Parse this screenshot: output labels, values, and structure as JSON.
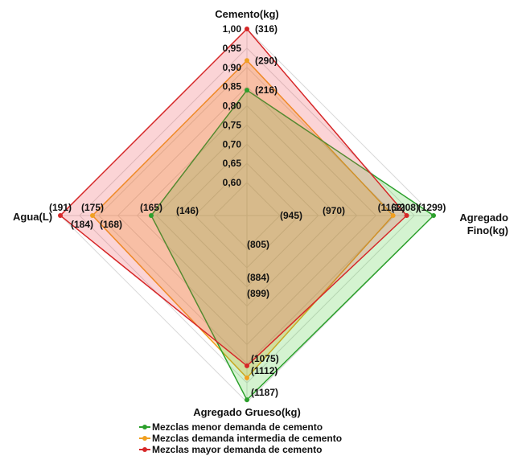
{
  "chart_data": {
    "type": "radar",
    "axes": [
      {
        "name": "Cemento(kg)",
        "lines": [
          "Cemento(kg)"
        ]
      },
      {
        "name": "Agregado Fino(kg)",
        "lines": [
          "Agregado",
          "Fino(kg)"
        ]
      },
      {
        "name": "Agregado Grueso(kg)",
        "lines": [
          "Agregado Grueso(kg)"
        ]
      },
      {
        "name": "Agua(L)",
        "lines": [
          "Agua(L)"
        ]
      }
    ],
    "rlim": [
      0.6,
      1.0
    ],
    "ticks": [
      "0,60",
      "0,65",
      "0,70",
      "0,75",
      "0,80",
      "0,85",
      "0,90",
      "0,95",
      "1,00"
    ],
    "grid": true,
    "legend_position": "bottom",
    "series": [
      {
        "name": "Mezclas menor demanda de cemento",
        "color": "#2ca02c",
        "fill": "rgba(60,200,40,0.22)",
        "values": [
          0.8405,
          1.0,
          0.9941,
          0.7634
        ],
        "range_bounds": [
          [
            0.8405,
            216
          ],
          [
            0.8368,
            1299
          ],
          [
            0.8458,
            1187
          ],
          [
            0.8385,
            165
          ]
        ],
        "labels": [
          "(216)",
          "(1299)",
          "(1187)",
          "(165)"
        ]
      },
      {
        "name": "Mezclas demanda intermedia de cemento",
        "color": "#f0a020",
        "fill": "rgba(240,160,32,0.28)",
        "values": [
          0.9177,
          0.8945,
          0.9368,
          0.9162
        ],
        "labels": [
          "(290)",
          "(1162)",
          "(1112)",
          "(175)"
        ]
      },
      {
        "name": "Mezclas mayor demanda de cemento",
        "color": "#d62728",
        "fill": "rgba(235,60,70,0.22)",
        "values": [
          1.0,
          0.93,
          0.9056,
          1.0
        ],
        "labels": [
          "(316)",
          "(1208)",
          "(1075)",
          "(191)"
        ]
      }
    ],
    "inner_labels": {
      "top": [],
      "right": [
        "(945)",
        "(970)"
      ],
      "bottom": [
        "(805)",
        "(884)",
        "(899)"
      ],
      "left": [
        "(146)",
        "(184)",
        "(168)"
      ]
    }
  }
}
